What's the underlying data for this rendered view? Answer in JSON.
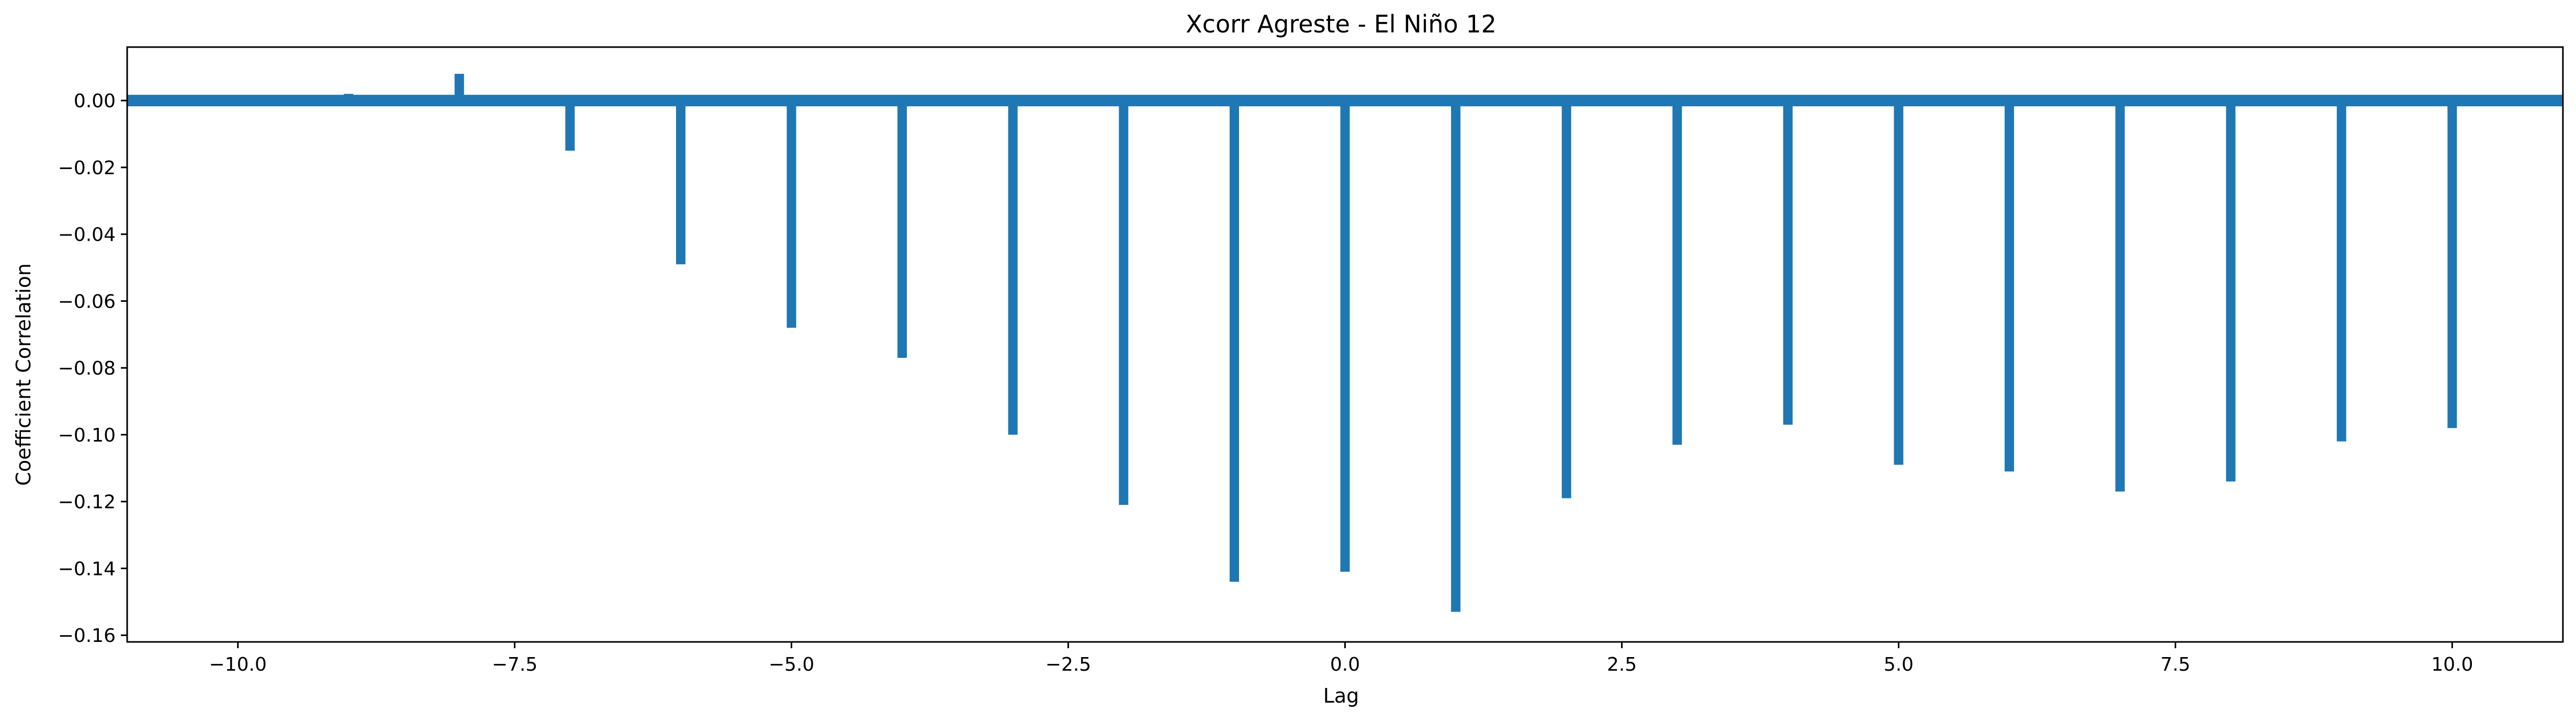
{
  "chart_data": {
    "type": "bar",
    "title": "Xcorr Agreste - El Niño 12",
    "xlabel": "Lag",
    "ylabel": "Coefficient Correlation",
    "xlim": [
      -11,
      11
    ],
    "ylim": [
      -0.162,
      0.016
    ],
    "x_ticks": [
      -10.0,
      -7.5,
      -5.0,
      -2.5,
      0.0,
      2.5,
      5.0,
      7.5,
      10.0
    ],
    "x_tick_labels": [
      "−10.0",
      "−7.5",
      "−5.0",
      "−2.5",
      "0.0",
      "2.5",
      "5.0",
      "7.5",
      "10.0"
    ],
    "y_ticks": [
      0.0,
      -0.02,
      -0.04,
      -0.06,
      -0.08,
      -0.1,
      -0.12,
      -0.14,
      -0.16
    ],
    "y_tick_labels": [
      "0.00",
      "−0.02",
      "−0.04",
      "−0.06",
      "−0.08",
      "−0.10",
      "−0.12",
      "−0.14",
      "−0.16"
    ],
    "x": [
      -10,
      -9,
      -8,
      -7,
      -6,
      -5,
      -4,
      -3,
      -2,
      -1,
      0,
      1,
      2,
      3,
      4,
      5,
      6,
      7,
      8,
      9,
      10
    ],
    "values": [
      0.0,
      0.002,
      0.008,
      -0.015,
      -0.049,
      -0.068,
      -0.077,
      -0.1,
      -0.121,
      -0.144,
      -0.141,
      -0.153,
      -0.119,
      -0.103,
      -0.097,
      -0.109,
      -0.111,
      -0.117,
      -0.114,
      -0.102,
      -0.098
    ],
    "zero_line": true,
    "grid": false,
    "color": "#1f77b4"
  }
}
